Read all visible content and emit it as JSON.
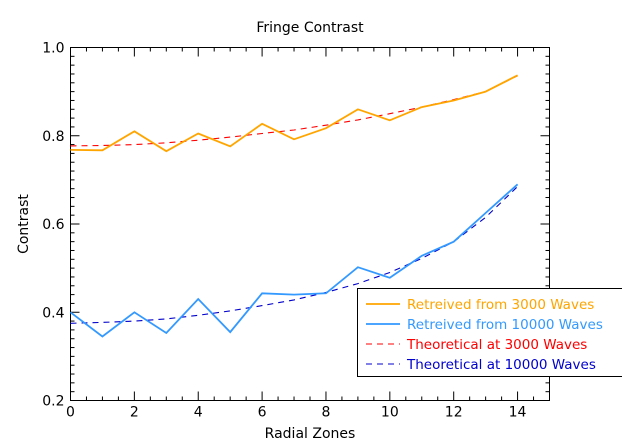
{
  "chart_data": {
    "type": "line",
    "title": "Fringe Contrast",
    "xlabel": "Radial Zones",
    "ylabel": "Contrast",
    "xlim": [
      0,
      15
    ],
    "ylim": [
      0.2,
      1.0
    ],
    "xticks": [
      0,
      2,
      4,
      6,
      8,
      10,
      12,
      14
    ],
    "yticks": [
      0.2,
      0.4,
      0.6,
      0.8,
      1.0
    ],
    "ytick_labels": [
      "0.2",
      "0.4",
      "0.6",
      "0.8",
      "1.0"
    ],
    "grid": false,
    "legend_position": "lower-right",
    "series": [
      {
        "name": "Retreived from 3000 Waves",
        "style": "solid",
        "color": "#FFA500",
        "x": [
          0,
          1,
          2,
          3,
          4,
          5,
          6,
          7,
          8,
          9,
          10,
          11,
          12,
          13,
          14
        ],
        "y": [
          0.768,
          0.767,
          0.81,
          0.765,
          0.805,
          0.776,
          0.827,
          0.792,
          0.817,
          0.86,
          0.835,
          0.865,
          0.88,
          0.9,
          0.937
        ]
      },
      {
        "name": "Retreived from 10000 Waves",
        "style": "solid",
        "color": "#3399FF",
        "x": [
          0,
          1,
          2,
          3,
          4,
          5,
          6,
          7,
          8,
          9,
          10,
          11,
          12,
          13,
          14
        ],
        "y": [
          0.4,
          0.345,
          0.4,
          0.353,
          0.43,
          0.355,
          0.443,
          0.44,
          0.443,
          0.502,
          0.478,
          0.528,
          0.56,
          0.625,
          0.69
        ]
      },
      {
        "name": "Theoretical at 3000 Waves",
        "style": "dashed",
        "color": "#FF0000",
        "x": [
          0,
          1,
          2,
          3,
          4,
          5,
          6,
          7,
          8,
          9,
          10,
          11,
          12,
          13,
          14
        ],
        "y": [
          0.777,
          0.778,
          0.78,
          0.784,
          0.79,
          0.797,
          0.805,
          0.813,
          0.824,
          0.836,
          0.85,
          0.865,
          0.882,
          0.9,
          0.936
        ]
      },
      {
        "name": "Theoretical at 10000 Waves",
        "style": "dashed",
        "color": "#0000CC",
        "x": [
          0,
          1,
          2,
          3,
          4,
          5,
          6,
          7,
          8,
          9,
          10,
          11,
          12,
          13,
          14
        ],
        "y": [
          0.375,
          0.377,
          0.38,
          0.385,
          0.393,
          0.403,
          0.415,
          0.428,
          0.445,
          0.465,
          0.49,
          0.522,
          0.56,
          0.615,
          0.685
        ]
      }
    ]
  }
}
